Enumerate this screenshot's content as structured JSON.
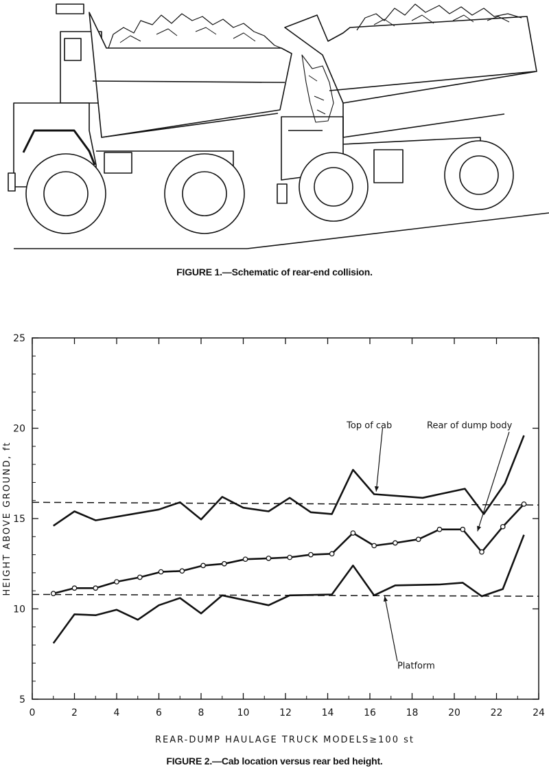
{
  "figure1": {
    "caption": "FIGURE 1.—Schematic of rear-end collision."
  },
  "figure2": {
    "caption": "FIGURE 2.—Cab location versus rear bed height."
  },
  "chart_data": {
    "type": "line",
    "xlabel": "REAR-DUMP HAULAGE TRUCK MODELS≥100 st",
    "ylabel": "HEIGHT ABOVE GROUND, ft",
    "xlim": [
      0,
      24
    ],
    "ylim": [
      5,
      25
    ],
    "xticks": [
      0,
      2,
      4,
      6,
      8,
      10,
      12,
      14,
      16,
      18,
      20,
      22,
      24
    ],
    "yticks": [
      5,
      10,
      15,
      20,
      25
    ],
    "grid": false,
    "series": [
      {
        "name": "Top of cab",
        "markers": false,
        "points": [
          [
            1,
            14.6
          ],
          [
            2,
            15.4
          ],
          [
            3,
            14.9
          ],
          [
            6,
            15.5
          ],
          [
            7,
            15.9
          ],
          [
            8,
            14.95
          ],
          [
            9,
            16.2
          ],
          [
            10,
            15.6
          ],
          [
            11.2,
            15.4
          ],
          [
            12.2,
            16.15
          ],
          [
            13.2,
            15.35
          ],
          [
            14.2,
            15.25
          ],
          [
            15.2,
            17.7
          ],
          [
            16.2,
            16.35
          ],
          [
            18.5,
            16.15
          ],
          [
            20.5,
            16.65
          ],
          [
            21.4,
            15.25
          ],
          [
            22.4,
            16.95
          ],
          [
            23.3,
            19.6
          ]
        ]
      },
      {
        "name": "Rear of dump body",
        "markers": true,
        "points": [
          [
            1,
            10.85
          ],
          [
            2,
            11.15
          ],
          [
            3,
            11.15
          ],
          [
            4,
            11.5
          ],
          [
            5.1,
            11.75
          ],
          [
            6.1,
            12.05
          ],
          [
            7.1,
            12.1
          ],
          [
            8.1,
            12.4
          ],
          [
            9.1,
            12.5
          ],
          [
            10.1,
            12.75
          ],
          [
            11.2,
            12.8
          ],
          [
            12.2,
            12.85
          ],
          [
            13.2,
            13.0
          ],
          [
            14.2,
            13.05
          ],
          [
            15.2,
            14.2
          ],
          [
            16.2,
            13.5
          ],
          [
            17.2,
            13.65
          ],
          [
            18.3,
            13.85
          ],
          [
            19.3,
            14.4
          ],
          [
            20.4,
            14.4
          ],
          [
            21.3,
            13.15
          ],
          [
            22.3,
            14.55
          ],
          [
            23.3,
            15.8
          ]
        ]
      },
      {
        "name": "Platform",
        "markers": false,
        "points": [
          [
            1,
            8.1
          ],
          [
            2,
            9.7
          ],
          [
            3,
            9.65
          ],
          [
            4,
            9.95
          ],
          [
            5,
            9.4
          ],
          [
            6,
            10.2
          ],
          [
            7,
            10.6
          ],
          [
            8,
            9.75
          ],
          [
            9,
            10.75
          ],
          [
            11.2,
            10.2
          ],
          [
            12.2,
            10.75
          ],
          [
            14.2,
            10.8
          ],
          [
            15.2,
            12.4
          ],
          [
            16.2,
            10.75
          ],
          [
            17.2,
            11.3
          ],
          [
            19.3,
            11.35
          ],
          [
            20.4,
            11.45
          ],
          [
            21.3,
            10.7
          ],
          [
            22.3,
            11.1
          ],
          [
            23.3,
            14.1
          ]
        ]
      }
    ],
    "reference_lines": [
      {
        "y_start": 15.9,
        "y_end": 15.75,
        "style": "dashed"
      },
      {
        "y_start": 10.8,
        "y_end": 10.7,
        "style": "dashed"
      }
    ],
    "annotations": [
      {
        "text": "Top of cab",
        "target": "Top of cab"
      },
      {
        "text": "Rear of dump body",
        "target": "Rear of dump body"
      },
      {
        "text": "Platform",
        "target": "Platform"
      }
    ]
  }
}
